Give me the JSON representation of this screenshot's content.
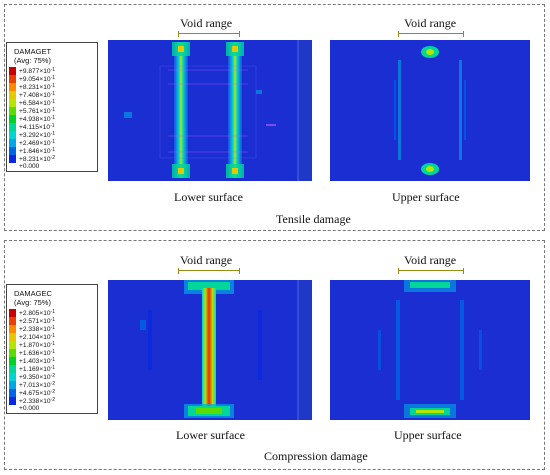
{
  "top": {
    "legend": {
      "title": "DAMAGET",
      "subtitle": "(Avg: 75%)",
      "values": [
        {
          "m": "+9.877",
          "e": "-1"
        },
        {
          "m": "+9.054",
          "e": "-1"
        },
        {
          "m": "+8.231",
          "e": "-1"
        },
        {
          "m": "+7.408",
          "e": "-1"
        },
        {
          "m": "+6.584",
          "e": "-1"
        },
        {
          "m": "+5.761",
          "e": "-1"
        },
        {
          "m": "+4.938",
          "e": "-1"
        },
        {
          "m": "+4.115",
          "e": "-1"
        },
        {
          "m": "+3.292",
          "e": "-1"
        },
        {
          "m": "+2.469",
          "e": "-1"
        },
        {
          "m": "+1.646",
          "e": "-1"
        },
        {
          "m": "+8.231",
          "e": "-2"
        },
        {
          "m": "+0.000",
          "e": ""
        }
      ]
    },
    "lower_label": "Lower surface",
    "upper_label": "Upper surface",
    "range_label_lower": "Void range",
    "range_label_upper": "Void range",
    "caption": "Tensile damage"
  },
  "bottom": {
    "legend": {
      "title": "DAMAGEC",
      "subtitle": "(Avg: 75%)",
      "values": [
        {
          "m": "+2.805",
          "e": "-1"
        },
        {
          "m": "+2.571",
          "e": "-1"
        },
        {
          "m": "+2.338",
          "e": "-1"
        },
        {
          "m": "+2.104",
          "e": "-1"
        },
        {
          "m": "+1.870",
          "e": "-1"
        },
        {
          "m": "+1.636",
          "e": "-1"
        },
        {
          "m": "+1.403",
          "e": "-1"
        },
        {
          "m": "+1.169",
          "e": "-1"
        },
        {
          "m": "+9.350",
          "e": "-2"
        },
        {
          "m": "+7.013",
          "e": "-2"
        },
        {
          "m": "+4.675",
          "e": "-2"
        },
        {
          "m": "+2.338",
          "e": "-2"
        },
        {
          "m": "+0.000",
          "e": ""
        }
      ]
    },
    "lower_label": "Lower surface",
    "upper_label": "Upper surface",
    "range_label_lower": "Void range",
    "range_label_upper": "Void range",
    "caption": "Compression damage"
  },
  "colors": {
    "contour_scale": [
      "#c80000",
      "#e84000",
      "#ff8a00",
      "#e6c800",
      "#b4e600",
      "#5adc00",
      "#00d228",
      "#00d69a",
      "#00d4d4",
      "#00a6e6",
      "#0064e6",
      "#0a28e0",
      "#0a0ab4"
    ],
    "model_background": "#1a2ed2",
    "range_marker": "#9a8a1c"
  }
}
